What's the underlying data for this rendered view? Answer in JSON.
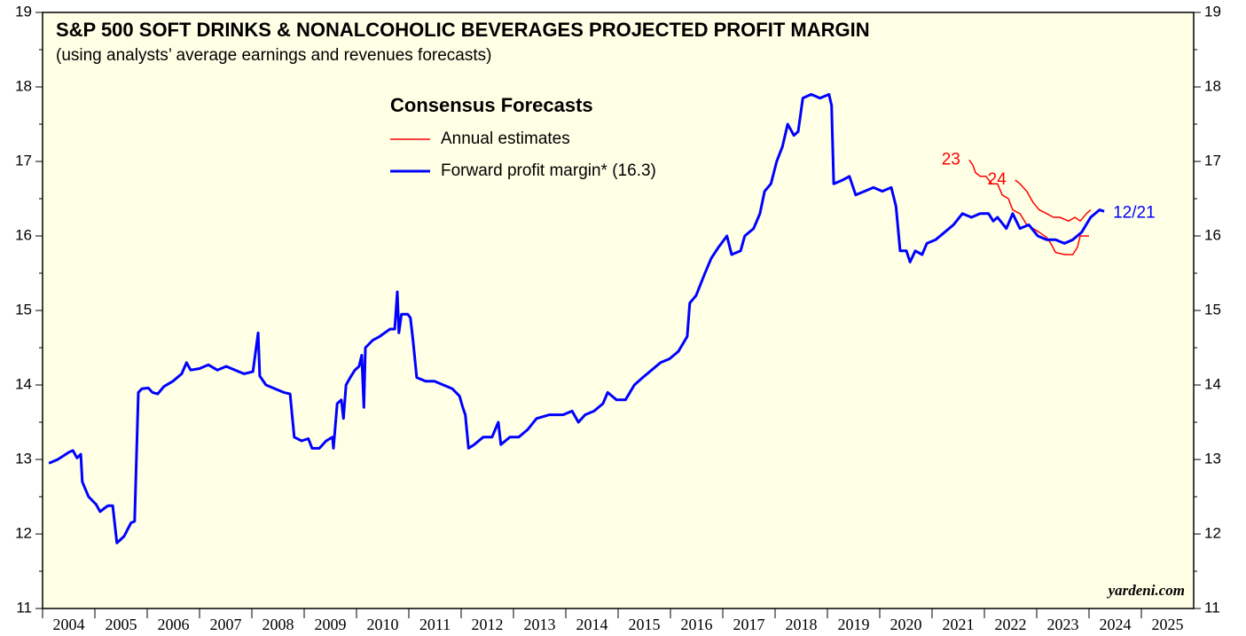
{
  "chart_data": {
    "type": "line",
    "title": "S&P 500 SOFT DRINKS & NONALCOHOLIC BEVERAGES PROJECTED PROFIT MARGIN",
    "subtitle": "(using analysts’ average earnings and revenues forecasts)",
    "legend_title": "Consensus Forecasts",
    "watermark": "yardeni.com",
    "background": "#ffffe6",
    "xlim": [
      2004,
      2026
    ],
    "xticks": [
      2004,
      2005,
      2006,
      2007,
      2008,
      2009,
      2010,
      2011,
      2012,
      2013,
      2014,
      2015,
      2016,
      2017,
      2018,
      2019,
      2020,
      2021,
      2022,
      2023,
      2024,
      2025
    ],
    "ylim": [
      11,
      19
    ],
    "yticks": [
      11,
      12,
      13,
      14,
      15,
      16,
      17,
      18,
      19
    ],
    "yminor_ticks": [
      11.5,
      12.5,
      13.5,
      14.5,
      15.5,
      16.5,
      17.5,
      18.5
    ],
    "series": [
      {
        "name": "Annual estimates",
        "color": "#ff0000",
        "lines": [
          {
            "label": "23",
            "x": [
              2021.71,
              2021.78,
              2021.83,
              2021.92,
              2022.03,
              2022.14,
              2022.25,
              2022.34,
              2022.46,
              2022.54,
              2022.68,
              2022.81,
              2022.93,
              2023.05,
              2023.19,
              2023.27,
              2023.36,
              2023.53,
              2023.69,
              2023.78,
              2023.83,
              2024.0
            ],
            "values": [
              17.02,
              16.95,
              16.85,
              16.8,
              16.8,
              16.7,
              16.7,
              16.55,
              16.5,
              16.35,
              16.3,
              16.15,
              16.1,
              16.05,
              15.98,
              15.9,
              15.78,
              15.75,
              15.75,
              15.85,
              16.0,
              16.0
            ]
          },
          {
            "label": "24",
            "x": [
              2022.59,
              2022.68,
              2022.81,
              2022.93,
              2023.05,
              2023.19,
              2023.32,
              2023.44,
              2023.61,
              2023.73,
              2023.83,
              2023.95,
              2024.03
            ],
            "values": [
              16.75,
              16.7,
              16.6,
              16.45,
              16.35,
              16.3,
              16.25,
              16.25,
              16.2,
              16.25,
              16.2,
              16.3,
              16.35
            ]
          }
        ]
      },
      {
        "name": "Forward profit margin* (16.3)",
        "color": "#0000ff",
        "end_label": "12/21",
        "x": [
          2004.12,
          2004.29,
          2004.51,
          2004.58,
          2004.66,
          2004.73,
          2004.76,
          2004.88,
          2005.02,
          2005.1,
          2005.19,
          2005.25,
          2005.34,
          2005.42,
          2005.56,
          2005.69,
          2005.76,
          2005.83,
          2005.9,
          2006.02,
          2006.1,
          2006.2,
          2006.32,
          2006.49,
          2006.66,
          2006.75,
          2006.83,
          2007.0,
          2007.17,
          2007.34,
          2007.51,
          2007.68,
          2007.85,
          2008.02,
          2008.12,
          2008.15,
          2008.27,
          2008.44,
          2008.61,
          2008.73,
          2008.81,
          2008.95,
          2009.08,
          2009.15,
          2009.29,
          2009.42,
          2009.54,
          2009.56,
          2009.63,
          2009.71,
          2009.75,
          2009.8,
          2009.88,
          2009.97,
          2010.05,
          2010.1,
          2010.14,
          2010.17,
          2010.31,
          2010.44,
          2010.64,
          2010.73,
          2010.78,
          2010.81,
          2010.86,
          2010.98,
          2011.03,
          2011.08,
          2011.15,
          2011.32,
          2011.49,
          2011.66,
          2011.83,
          2011.97,
          2012.03,
          2012.08,
          2012.14,
          2012.25,
          2012.42,
          2012.59,
          2012.71,
          2012.76,
          2012.93,
          2013.1,
          2013.27,
          2013.44,
          2013.69,
          2013.95,
          2014.12,
          2014.24,
          2014.37,
          2014.54,
          2014.71,
          2014.8,
          2014.97,
          2015.14,
          2015.31,
          2015.47,
          2015.64,
          2015.81,
          2015.98,
          2016.15,
          2016.32,
          2016.37,
          2016.49,
          2016.66,
          2016.78,
          2016.92,
          2017.08,
          2017.17,
          2017.34,
          2017.42,
          2017.59,
          2017.71,
          2017.8,
          2017.92,
          2018.03,
          2018.14,
          2018.24,
          2018.36,
          2018.44,
          2018.53,
          2018.69,
          2018.86,
          2019.03,
          2019.08,
          2019.12,
          2019.29,
          2019.42,
          2019.54,
          2019.71,
          2019.88,
          2020.05,
          2020.22,
          2020.31,
          2020.39,
          2020.51,
          2020.58,
          2020.68,
          2020.81,
          2020.9,
          2021.07,
          2021.24,
          2021.41,
          2021.58,
          2021.75,
          2021.92,
          2022.08,
          2022.17,
          2022.25,
          2022.42,
          2022.54,
          2022.68,
          2022.85,
          2023.02,
          2023.19,
          2023.36,
          2023.53,
          2023.69,
          2023.86,
          2024.03,
          2024.2,
          2024.29
        ],
        "values": [
          12.95,
          13.0,
          13.1,
          13.12,
          13.02,
          13.07,
          12.7,
          12.5,
          12.4,
          12.3,
          12.35,
          12.38,
          12.38,
          11.88,
          11.97,
          12.15,
          12.17,
          13.9,
          13.95,
          13.96,
          13.9,
          13.88,
          13.98,
          14.05,
          14.15,
          14.3,
          14.2,
          14.22,
          14.27,
          14.2,
          14.25,
          14.2,
          14.15,
          14.18,
          14.7,
          14.12,
          14.0,
          13.95,
          13.9,
          13.88,
          13.3,
          13.25,
          13.28,
          13.15,
          13.15,
          13.25,
          13.3,
          13.15,
          13.75,
          13.8,
          13.55,
          14.0,
          14.1,
          14.2,
          14.25,
          14.4,
          13.7,
          14.5,
          14.6,
          14.65,
          14.75,
          14.75,
          15.25,
          14.7,
          14.95,
          14.95,
          14.9,
          14.6,
          14.1,
          14.05,
          14.05,
          14.0,
          13.95,
          13.85,
          13.7,
          13.6,
          13.15,
          13.2,
          13.3,
          13.3,
          13.5,
          13.2,
          13.3,
          13.3,
          13.4,
          13.55,
          13.6,
          13.6,
          13.65,
          13.5,
          13.6,
          13.65,
          13.75,
          13.9,
          13.8,
          13.8,
          14.0,
          14.1,
          14.2,
          14.3,
          14.35,
          14.45,
          14.65,
          15.1,
          15.2,
          15.5,
          15.7,
          15.85,
          16.0,
          15.75,
          15.8,
          16.0,
          16.1,
          16.3,
          16.6,
          16.7,
          17.0,
          17.2,
          17.5,
          17.35,
          17.4,
          17.85,
          17.9,
          17.85,
          17.9,
          17.75,
          16.7,
          16.75,
          16.8,
          16.55,
          16.6,
          16.65,
          16.6,
          16.65,
          16.4,
          15.8,
          15.8,
          15.65,
          15.8,
          15.75,
          15.9,
          15.95,
          16.05,
          16.15,
          16.3,
          16.25,
          16.3,
          16.3,
          16.2,
          16.25,
          16.1,
          16.3,
          16.1,
          16.15,
          16.0,
          15.95,
          15.95,
          15.9,
          15.95,
          16.05,
          16.25,
          16.35,
          16.33
        ]
      }
    ]
  }
}
